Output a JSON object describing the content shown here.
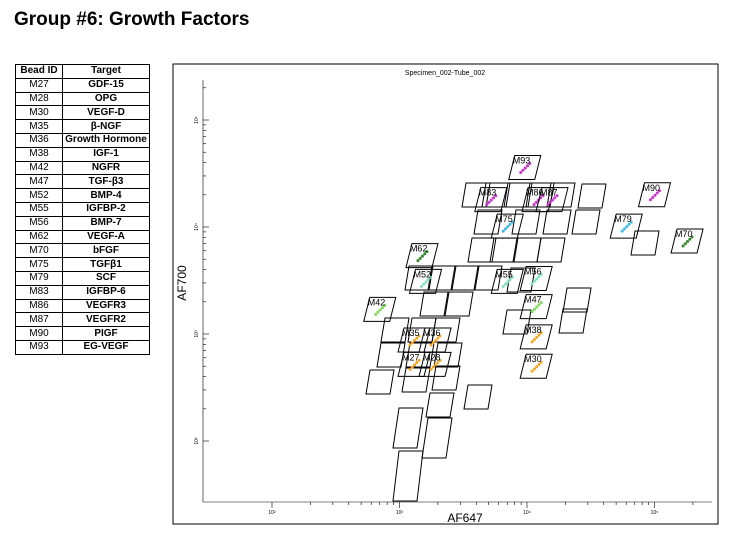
{
  "title": "Group #6: Growth Factors",
  "table": {
    "headers": [
      "Bead ID",
      "Target"
    ],
    "rows": [
      [
        "M27",
        "GDF-15"
      ],
      [
        "M28",
        "OPG"
      ],
      [
        "M30",
        "VEGF-D"
      ],
      [
        "M35",
        "β-NGF"
      ],
      [
        "M36",
        "Growth Hormone"
      ],
      [
        "M38",
        "IGF-1"
      ],
      [
        "M42",
        "NGFR"
      ],
      [
        "M47",
        "TGF-β3"
      ],
      [
        "M52",
        "BMP-4"
      ],
      [
        "M55",
        "IGFBP-2"
      ],
      [
        "M56",
        "BMP-7"
      ],
      [
        "M62",
        "VEGF-A"
      ],
      [
        "M70",
        "bFGF"
      ],
      [
        "M75",
        "TGFβ1"
      ],
      [
        "M79",
        "SCF"
      ],
      [
        "M83",
        "IGFBP-6"
      ],
      [
        "M86",
        "VEGFR3"
      ],
      [
        "M87",
        "VEGFR2"
      ],
      [
        "M90",
        "PIGF"
      ],
      [
        "M93",
        "EG-VEGF"
      ]
    ]
  },
  "chart_data": {
    "type": "scatter",
    "title": "Specimen_002-Tube_002",
    "xlabel": "AF647",
    "ylabel": "AF700",
    "x_scale": "log",
    "y_scale": "log",
    "xlim": [
      100,
      200000
    ],
    "ylim": [
      50,
      200000
    ],
    "x_ticks": [
      "10²",
      "10³",
      "10⁴",
      "10⁵"
    ],
    "y_ticks": [
      "10²",
      "10³",
      "10⁴",
      "10⁵"
    ],
    "populations": [
      {
        "name": "M27",
        "x": 1300,
        "y": 520,
        "color": "#f5a623"
      },
      {
        "name": "M28",
        "x": 1900,
        "y": 520,
        "color": "#f5a623"
      },
      {
        "name": "M30",
        "x": 11800,
        "y": 500,
        "color": "#f5a623"
      },
      {
        "name": "M35",
        "x": 1300,
        "y": 880,
        "color": "#f5a623"
      },
      {
        "name": "M36",
        "x": 1900,
        "y": 880,
        "color": "#f5a623"
      },
      {
        "name": "M38",
        "x": 11800,
        "y": 940,
        "color": "#f5a623"
      },
      {
        "name": "M42",
        "x": 700,
        "y": 1700,
        "color": "#7ed957"
      },
      {
        "name": "M47",
        "x": 11800,
        "y": 1800,
        "color": "#7ed957"
      },
      {
        "name": "M52",
        "x": 1600,
        "y": 3100,
        "color": "#7fe0c0"
      },
      {
        "name": "M55",
        "x": 7000,
        "y": 3100,
        "color": "#7fe0c0"
      },
      {
        "name": "M56",
        "x": 11800,
        "y": 3300,
        "color": "#7fe0c0"
      },
      {
        "name": "M62",
        "x": 1500,
        "y": 5400,
        "color": "#2e8b22"
      },
      {
        "name": "M70",
        "x": 180000,
        "y": 7400,
        "color": "#2e8b22"
      },
      {
        "name": "M75",
        "x": 7000,
        "y": 10200,
        "color": "#3cb8e0"
      },
      {
        "name": "M79",
        "x": 60000,
        "y": 10200,
        "color": "#3cb8e0"
      },
      {
        "name": "M83",
        "x": 5200,
        "y": 18000,
        "color": "#cc33cc"
      },
      {
        "name": "M86",
        "x": 12200,
        "y": 18000,
        "color": "#cc33cc"
      },
      {
        "name": "M87",
        "x": 15700,
        "y": 18000,
        "color": "#cc33cc"
      },
      {
        "name": "M90",
        "x": 100000,
        "y": 20000,
        "color": "#cc33cc"
      },
      {
        "name": "M93",
        "x": 9600,
        "y": 36000,
        "color": "#cc33cc"
      }
    ]
  }
}
